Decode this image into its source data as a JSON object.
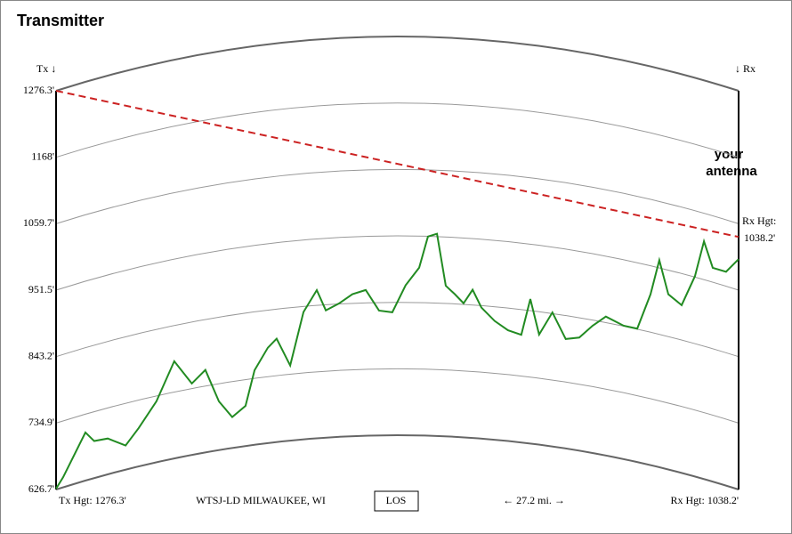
{
  "chart_data": {
    "type": "line",
    "title": "Transmitter",
    "tx_marker": "Tx ↓",
    "rx_marker": "↓ Rx",
    "annotation_lines": [
      "your",
      "antenna"
    ],
    "rx_label": "Rx Hgt:",
    "tx_height": 1276.3,
    "rx_height": 1038.2,
    "rx_height_label": "1038.2'",
    "los_color": "#cc2222",
    "footer": {
      "tx": "Tx Hgt: 1276.3'",
      "station": "WTSJ-LD MILWAUKEE, WI",
      "button": "LOS",
      "distance": "← 27.2 mi. →",
      "rx": "Rx Hgt: 1038.2'"
    },
    "xlim": [
      0,
      27.2
    ],
    "ylim": [
      626.7,
      1276.3
    ],
    "yticks": [
      {
        "value": 1276.3,
        "label": "1276.3'"
      },
      {
        "value": 1168,
        "label": "1168'"
      },
      {
        "value": 1059.7,
        "label": "1059.7'"
      },
      {
        "value": 951.5,
        "label": "951.5'"
      },
      {
        "value": 843.2,
        "label": "843.2'"
      },
      {
        "value": 734.9,
        "label": "734.9'"
      },
      {
        "value": 626.7,
        "label": "626.7'"
      }
    ],
    "x": [
      0,
      0.28,
      0.64,
      1.17,
      1.52,
      2.06,
      2.77,
      3.29,
      4.0,
      4.71,
      5.41,
      5.95,
      6.49,
      7.02,
      7.55,
      7.91,
      8.44,
      8.79,
      9.33,
      9.86,
      10.39,
      10.75,
      11.28,
      11.81,
      12.34,
      12.87,
      13.4,
      13.93,
      14.47,
      14.82,
      15.18,
      15.53,
      15.89,
      16.24,
      16.6,
      16.95,
      17.48,
      18.01,
      18.54,
      18.9,
      19.25,
      19.78,
      20.31,
      20.85,
      21.38,
      21.91,
      22.62,
      23.16,
      23.69,
      24.04,
      24.4,
      24.93,
      25.46,
      25.82,
      26.17,
      26.7,
      27.2
    ],
    "series": [
      {
        "color": "#228b22",
        "values": [
          628,
          643,
          668,
          705,
          687,
          685,
          666,
          689,
          726,
          785,
          743,
          761,
          706,
          677,
          692,
          748,
          782,
          795,
          749,
          834,
          868,
          834,
          844,
          858,
          864,
          830,
          827,
          871,
          900,
          951,
          956,
          872,
          859,
          845,
          868,
          840,
          820,
          807,
          802,
          862,
          806,
          845,
          805,
          811,
          834,
          853,
          844,
          844,
          905,
          964,
          912,
          900,
          953,
          1014,
          975,
          975,
          1002
        ]
      }
    ]
  }
}
